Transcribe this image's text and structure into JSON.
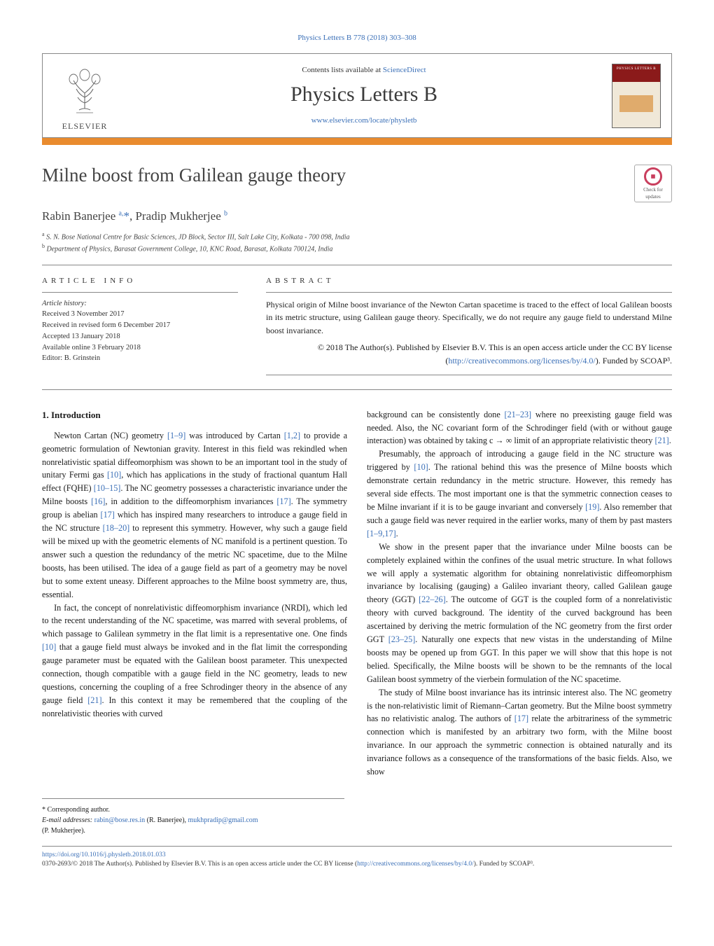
{
  "top_citation": "Physics Letters B 778 (2018) 303–308",
  "header": {
    "publisher": "ELSEVIER",
    "contents_pre": "Contents lists available at ",
    "contents_link": "ScienceDirect",
    "journal": "Physics Letters B",
    "journal_url": "www.elsevier.com/locate/physletb",
    "cover_label": "PHYSICS LETTERS B"
  },
  "colors": {
    "orange_bar": "#e98b2e",
    "link": "#3a6fb7",
    "cover_top": "#8b1a1a"
  },
  "title": "Milne boost from Galilean gauge theory",
  "updates_badge": {
    "line1": "Check for",
    "line2": "updates"
  },
  "authors_html": "Rabin Banerjee <sup>a,</sup><span class='star'>*</span>, Pradip Mukherjee <sup>b</sup>",
  "affiliations": [
    {
      "sup": "a",
      "text": "S. N. Bose National Centre for Basic Sciences, JD Block, Sector III, Salt Lake City, Kolkata - 700 098, India"
    },
    {
      "sup": "b",
      "text": "Department of Physics, Barasat Government College, 10, KNC Road, Barasat, Kolkata 700124, India"
    }
  ],
  "article_info": {
    "label": "ARTICLE INFO",
    "history_heading": "Article history:",
    "lines": [
      "Received 3 November 2017",
      "Received in revised form 6 December 2017",
      "Accepted 13 January 2018",
      "Available online 3 February 2018",
      "Editor: B. Grinstein"
    ]
  },
  "abstract": {
    "label": "ABSTRACT",
    "body": "Physical origin of Milne boost invariance of the Newton Cartan spacetime is traced to the effect of local Galilean boosts in its metric structure, using Galilean gauge theory. Specifically, we do not require any gauge field to understand Milne boost invariance.",
    "license_pre": "© 2018 The Author(s). Published by Elsevier B.V. This is an open access article under the CC BY license (",
    "license_url": "http://creativecommons.org/licenses/by/4.0/",
    "license_post": "). Funded by SCOAP³."
  },
  "section_heading": "1. Introduction",
  "left_col": {
    "p1_a": "Newton Cartan (NC) geometry ",
    "r1": "[1–9]",
    "p1_b": " was introduced by Cartan ",
    "r2": "[1,2]",
    "p1_c": " to provide a geometric formulation of Newtonian gravity. Interest in this field was rekindled when nonrelativistic spatial diffeomorphism was shown to be an important tool in the study of unitary Fermi gas ",
    "r3": "[10]",
    "p1_d": ", which has applications in the study of fractional quantum Hall effect (FQHE) ",
    "r4": "[10–15]",
    "p1_e": ". The NC geometry possesses a characteristic invariance under the Milne boosts ",
    "r5": "[16]",
    "p1_f": ", in addition to the diffeomorphism invariances ",
    "r6": "[17]",
    "p1_g": ". The symmetry group is abelian ",
    "r7": "[17]",
    "p1_h": " which has inspired many researchers to introduce a gauge field in the NC structure ",
    "r8": "[18–20]",
    "p1_i": " to represent this symmetry. However, why such a gauge field will be mixed up with the geometric elements of NC manifold is a pertinent question. To answer such a question the redundancy of the metric NC spacetime, due to the Milne boosts, has been utilised. The idea of a gauge field as part of a geometry may be novel but to some extent uneasy. Different approaches to the Milne boost symmetry are, thus, essential.",
    "p2_a": "In fact, the concept of nonrelativistic diffeomorphism invariance (NRDI), which led to the recent understanding of the NC spacetime, was marred with several problems, of which passage to Galilean symmetry in the flat limit is a representative one. One finds ",
    "r9": "[10]",
    "p2_b": " that a gauge field must always be invoked and in the flat limit the corresponding gauge parameter must be equated with the Galilean boost parameter. This unexpected connection, though compatible with a gauge field in the NC geometry, leads to new questions, concerning the coupling of a free Schrodinger theory in the absence of any gauge field ",
    "r10": "[21]",
    "p2_c": ". In this context it may be remembered that the coupling of the nonrelativistic theories with curved"
  },
  "right_col": {
    "p1_a": "background can be consistently done ",
    "r1": "[21–23]",
    "p1_b": " where no preexisting gauge field was needed. Also, the NC covariant form of the Schrodinger field (with or without gauge interaction) was obtained by taking c → ∞ limit of an appropriate relativistic theory ",
    "r2": "[21]",
    "p1_c": ".",
    "p2_a": "Presumably, the approach of introducing a gauge field in the NC structure was triggered by ",
    "r3": "[10]",
    "p2_b": ". The rational behind this was the presence of Milne boosts which demonstrate certain redundancy in the metric structure. However, this remedy has several side effects. The most important one is that the symmetric connection ceases to be Milne invariant if it is to be gauge invariant and conversely ",
    "r4": "[19]",
    "p2_c": ". Also remember that such a gauge field was never required in the earlier works, many of them by past masters ",
    "r5": "[1–9,17]",
    "p2_d": ".",
    "p3_a": "We show in the present paper that the invariance under Milne boosts can be completely explained within the confines of the usual metric structure. In what follows we will apply a systematic algorithm for obtaining nonrelativistic diffeomorphism invariance by localising (gauging) a Galileo invariant theory, called Galilean gauge theory (GGT) ",
    "r6": "[22–26]",
    "p3_b": ". The outcome of GGT is the coupled form of a nonrelativistic theory with curved background. The identity of the curved background has been ascertained by deriving the metric formulation of the NC geometry from the first order GGT ",
    "r7": "[23–25]",
    "p3_c": ". Naturally one expects that new vistas in the understanding of Milne boosts may be opened up from GGT. In this paper we will show that this hope is not belied. Specifically, the Milne boosts will be shown to be the remnants of the local Galilean boost symmetry of the vierbein formulation of the NC spacetime.",
    "p4_a": "The study of Milne boost invariance has its intrinsic interest also. The NC geometry is the non-relativistic limit of Riemann–Cartan geometry. But the Milne boost symmetry has no relativistic analog. The authors of ",
    "r8": "[17]",
    "p4_b": " relate the arbitrariness of the symmetric connection which is manifested by an arbitrary two form, with the Milne boost invariance. In our approach the symmetric connection is obtained naturally and its invariance follows as a consequence of the transformations of the basic fields. Also, we show"
  },
  "footnotes": {
    "corr": "* Corresponding author.",
    "email_label": "E-mail addresses:",
    "email1": "rabin@bose.res.in",
    "email1_who": " (R. Banerjee), ",
    "email2": "mukhpradip@gmail.com",
    "email2_who": " (P. Mukherjee)."
  },
  "bottom": {
    "doi": "https://doi.org/10.1016/j.physletb.2018.01.033",
    "line_a": "0370-2693/© 2018 The Author(s). Published by Elsevier B.V. This is an open access article under the CC BY license (",
    "line_url": "http://creativecommons.org/licenses/by/4.0/",
    "line_b": "). Funded by SCOAP³."
  }
}
